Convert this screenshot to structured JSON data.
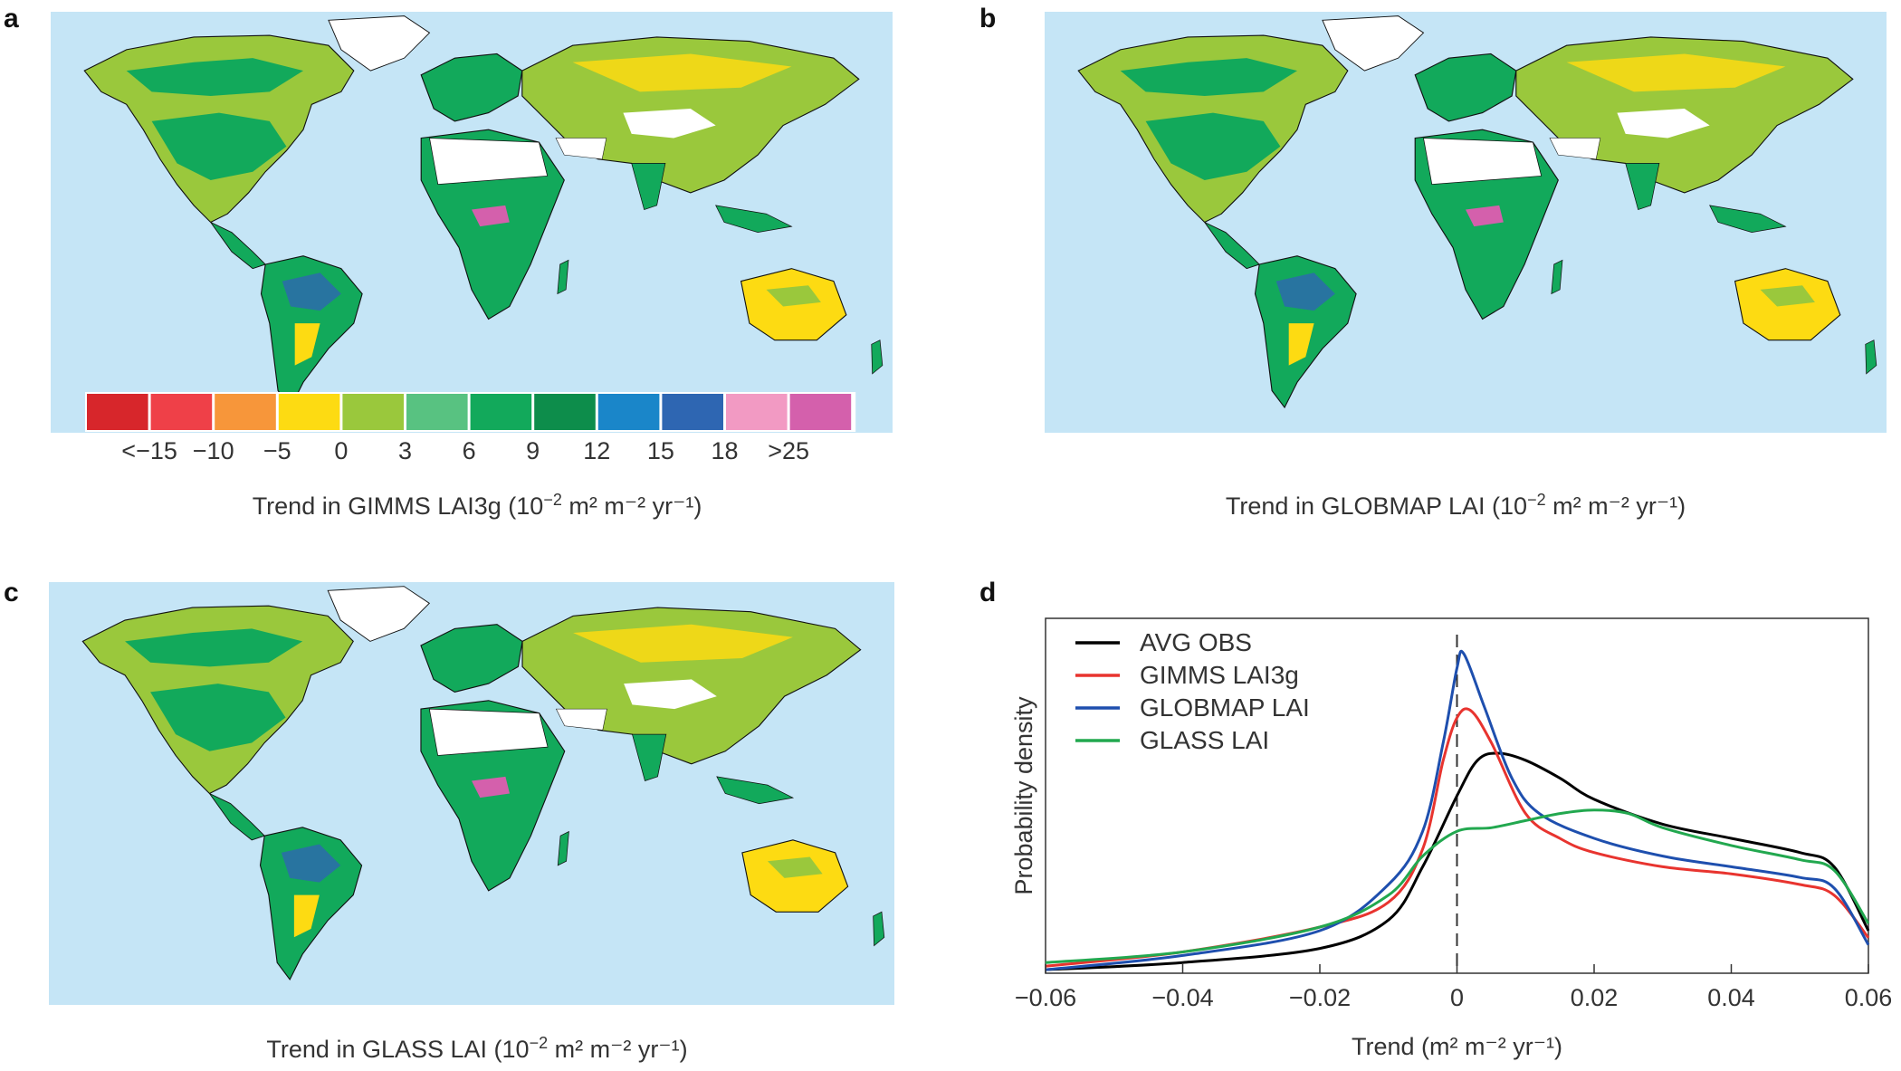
{
  "panels": [
    {
      "letter": "a",
      "caption_main": "Trend in GIMMS LAI3g (10",
      "caption_sup": "−2",
      "caption_tail": " m² m⁻² yr⁻¹)"
    },
    {
      "letter": "b",
      "caption_main": "Trend in GLOBMAP LAI (10",
      "caption_sup": "−2",
      "caption_tail": " m² m⁻² yr⁻¹)"
    },
    {
      "letter": "c",
      "caption_main": "Trend in GLASS LAI (10",
      "caption_sup": "−2",
      "caption_tail": " m² m⁻² yr⁻¹)"
    },
    {
      "letter": "d"
    }
  ],
  "colorbar": {
    "colors": [
      "#d7262b",
      "#ef4048",
      "#f7963a",
      "#fddb12",
      "#9ac83c",
      "#58c281",
      "#12a95b",
      "#0d8d4b",
      "#1a86c9",
      "#2e66b2",
      "#f29ac3",
      "#d460ac"
    ],
    "labels": [
      "<−15",
      "−10",
      "−5",
      "0",
      "3",
      "6",
      "9",
      "12",
      "15",
      "18",
      ">25"
    ]
  },
  "map_colors": {
    "ocean": "#c5e5f6",
    "land_green": "#12a95b",
    "land_light_green": "#9ac83c",
    "land_yellow": "#fddb12",
    "land_white": "#ffffff",
    "land_pink": "#d460ac",
    "land_blue": "#2e66b2",
    "land_red": "#ef4048",
    "border": "#111111"
  },
  "chart_data": {
    "type": "line",
    "title": "",
    "xlabel": "Trend (m² m⁻² yr⁻¹)",
    "ylabel": "Probability density",
    "xlim": [
      -0.06,
      0.06
    ],
    "ylim": [
      0,
      1
    ],
    "xticks": [
      -0.06,
      -0.04,
      -0.02,
      0,
      0.02,
      0.04,
      0.06
    ],
    "xtick_labels": [
      "−0.06",
      "−0.04",
      "−0.02",
      "0",
      "0.02",
      "0.04",
      "0.06"
    ],
    "y_tick_labels_shown": false,
    "vline_x": 0,
    "legend_position": "top-left",
    "series": [
      {
        "name": "AVG OBS",
        "color": "#000000",
        "x": [
          -0.06,
          -0.04,
          -0.02,
          -0.01,
          -0.005,
          0,
          0.003,
          0.006,
          0.01,
          0.015,
          0.02,
          0.03,
          0.04,
          0.05,
          0.055,
          0.06
        ],
        "y": [
          0.01,
          0.03,
          0.07,
          0.15,
          0.3,
          0.5,
          0.6,
          0.62,
          0.6,
          0.55,
          0.49,
          0.42,
          0.38,
          0.34,
          0.3,
          0.12
        ]
      },
      {
        "name": "GIMMS LAI3g",
        "color": "#e8342f",
        "x": [
          -0.06,
          -0.04,
          -0.02,
          -0.01,
          -0.005,
          -0.002,
          0,
          0.002,
          0.005,
          0.01,
          0.015,
          0.02,
          0.03,
          0.04,
          0.05,
          0.055,
          0.06
        ],
        "y": [
          0.02,
          0.06,
          0.13,
          0.2,
          0.35,
          0.6,
          0.72,
          0.74,
          0.65,
          0.45,
          0.38,
          0.34,
          0.3,
          0.28,
          0.25,
          0.22,
          0.1
        ]
      },
      {
        "name": "GLOBMAP LAI",
        "color": "#1e4fae",
        "x": [
          -0.06,
          -0.04,
          -0.02,
          -0.01,
          -0.005,
          -0.002,
          0,
          0.001,
          0.004,
          0.008,
          0.012,
          0.02,
          0.03,
          0.04,
          0.05,
          0.055,
          0.06
        ],
        "y": [
          0.01,
          0.05,
          0.12,
          0.25,
          0.4,
          0.65,
          0.86,
          0.9,
          0.75,
          0.55,
          0.45,
          0.38,
          0.33,
          0.3,
          0.27,
          0.24,
          0.08
        ]
      },
      {
        "name": "GLASS LAI",
        "color": "#22a84f",
        "x": [
          -0.06,
          -0.04,
          -0.02,
          -0.01,
          -0.005,
          0,
          0.005,
          0.01,
          0.015,
          0.02,
          0.025,
          0.03,
          0.04,
          0.05,
          0.055,
          0.06
        ],
        "y": [
          0.03,
          0.06,
          0.13,
          0.22,
          0.33,
          0.4,
          0.41,
          0.43,
          0.45,
          0.46,
          0.45,
          0.41,
          0.36,
          0.32,
          0.29,
          0.14
        ]
      }
    ]
  }
}
